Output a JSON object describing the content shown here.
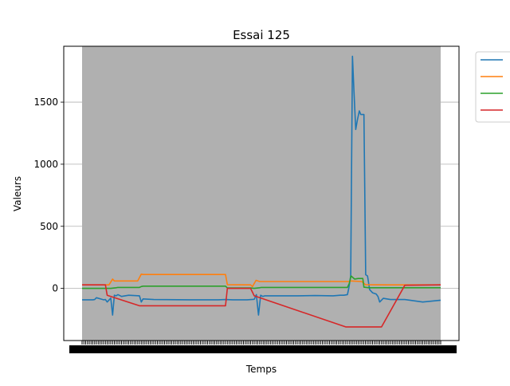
{
  "chart_data": {
    "type": "line",
    "title": "Essai 125",
    "xlabel": "Temps",
    "ylabel": "Valeurs",
    "xlim": [
      0,
      100
    ],
    "ylim": [
      -420,
      1950
    ],
    "yticks": [
      0,
      500,
      1000,
      1500
    ],
    "grid": "horizontal",
    "shaded_region_color": "#b0b0b0",
    "legend": "outside top-right",
    "series": [
      {
        "color": "#1f77b4",
        "x": [
          0,
          3,
          3.5,
          4,
          6,
          6.5,
          7,
          8,
          8.5,
          9,
          9.5,
          10,
          11,
          13,
          16,
          16.5,
          17,
          20,
          30,
          38,
          40,
          42,
          46,
          48,
          48.6,
          49.2,
          49.8,
          50.4,
          51,
          56,
          60,
          65,
          70,
          72,
          73,
          74,
          74.4,
          74.9,
          75.4,
          75.8,
          76.3,
          76.8,
          77.3,
          77.7,
          78.2,
          78.6,
          79.1,
          79.6,
          80.2,
          81,
          82,
          82.5,
          83,
          84,
          86,
          90,
          95,
          100
        ],
        "y": [
          -92,
          -92,
          -90,
          -75,
          -92,
          -90,
          -110,
          -78,
          -215,
          -55,
          -60,
          -50,
          -65,
          -55,
          -60,
          -110,
          -85,
          -90,
          -92,
          -92,
          -90,
          -92,
          -92,
          -88,
          -50,
          -215,
          -55,
          -65,
          -60,
          -60,
          -60,
          -58,
          -60,
          -55,
          -55,
          -50,
          5,
          100,
          1870,
          1600,
          1280,
          1360,
          1430,
          1400,
          1400,
          1400,
          110,
          100,
          -10,
          -35,
          -45,
          -65,
          -110,
          -80,
          -90,
          -90,
          -110,
          -95
        ]
      },
      {
        "color": "#ff7f0e",
        "x": [
          0,
          7.5,
          8.5,
          9,
          10,
          15.5,
          16.5,
          17,
          40,
          40.5,
          47,
          47.5,
          48.5,
          49.5,
          50,
          73.5,
          74.5,
          75,
          78,
          79,
          85,
          100
        ],
        "y": [
          28,
          28,
          75,
          60,
          60,
          60,
          115,
          112,
          112,
          30,
          28,
          15,
          65,
          55,
          55,
          55,
          55,
          60,
          55,
          30,
          28,
          28
        ]
      },
      {
        "color": "#2ca02c",
        "x": [
          0,
          8,
          9.5,
          10,
          16,
          16.5,
          17,
          40,
          40.5,
          47,
          48,
          49.5,
          50,
          74,
          74.5,
          75,
          76,
          77,
          78.3,
          78.6,
          80,
          100
        ],
        "y": [
          0,
          0,
          5,
          8,
          8,
          15,
          18,
          18,
          3,
          3,
          0,
          5,
          8,
          8,
          40,
          100,
          75,
          80,
          80,
          10,
          5,
          5
        ]
      },
      {
        "color": "#d62728",
        "x": [
          0,
          6.5,
          7,
          16,
          40,
          40.5,
          47,
          48,
          73.5,
          83.5,
          90,
          100
        ],
        "y": [
          28,
          28,
          -55,
          -140,
          -140,
          0,
          0,
          -60,
          -310,
          -310,
          25,
          28
        ]
      }
    ]
  }
}
